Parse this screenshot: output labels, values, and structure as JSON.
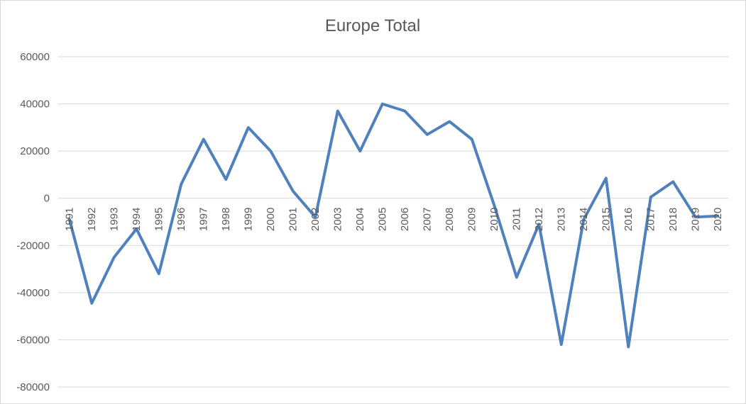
{
  "chart_data": {
    "type": "line",
    "title": "Europe Total",
    "xlabel": "",
    "ylabel": "",
    "ylim": [
      -80000,
      60000
    ],
    "yticks": [
      60000,
      40000,
      20000,
      0,
      -20000,
      -40000,
      -60000,
      -80000
    ],
    "grid": true,
    "legend": "none",
    "line_color": "#4f81bd",
    "categories": [
      "1991",
      "1992",
      "1993",
      "1994",
      "1995",
      "1996",
      "1997",
      "1998",
      "1999",
      "2000",
      "2001",
      "2002",
      "2003",
      "2004",
      "2005",
      "2006",
      "2007",
      "2008",
      "2009",
      "2010",
      "2011",
      "2012",
      "2013",
      "2014",
      "2015",
      "2016",
      "2017",
      "2018",
      "2019",
      "2020"
    ],
    "series": [
      {
        "values": [
          -9000,
          -44500,
          -25000,
          -13000,
          -32000,
          6000,
          25000,
          8000,
          30000,
          20000,
          3000,
          -8000,
          37000,
          20000,
          40000,
          37000,
          27000,
          32500,
          25000,
          -3000,
          -33500,
          -11000,
          -62000,
          -9000,
          8500,
          -63000,
          500,
          7000,
          -8000,
          -7500
        ]
      }
    ]
  }
}
